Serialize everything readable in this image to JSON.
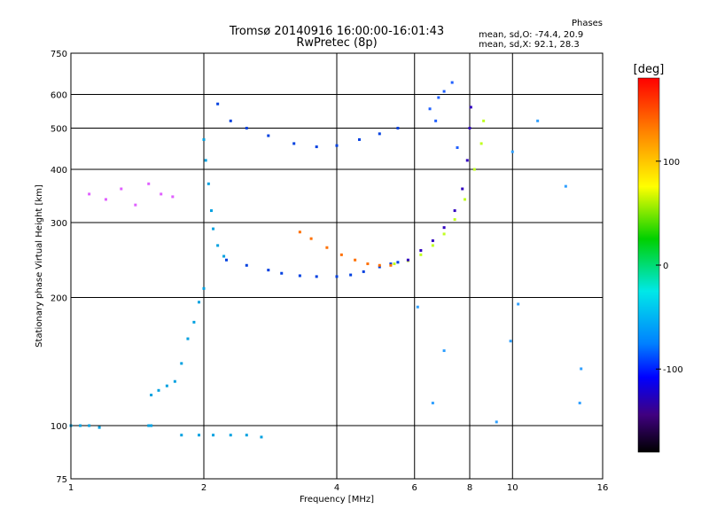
{
  "header": {
    "title_line1": "Tromsø 20140916 16:00:00-16:01:43",
    "title_line2": "RwPretec (8p)",
    "phases_heading": "Phases",
    "phases_line1": "mean, sd,O:  -74.4, 20.9",
    "phases_line2": "mean, sd,X:   92.1, 28.3"
  },
  "chart_data": {
    "type": "scatter",
    "title": "Tromsø 20140916 16:00:00-16:01:43",
    "subtitle": "RwPretec (8p)",
    "xlabel": "Frequency [MHz]",
    "ylabel": "Stationary phase Virtual Height [km]",
    "xscale": "log2",
    "yscale": "log",
    "xlim": [
      1,
      16
    ],
    "ylim": [
      75,
      750
    ],
    "x_ticks": [
      1,
      2,
      4,
      6,
      8,
      10,
      16
    ],
    "x_tick_labels": [
      "1",
      "2",
      "4",
      "6",
      "8",
      "10",
      "16"
    ],
    "y_ticks": [
      75,
      100,
      200,
      300,
      400,
      500,
      600,
      750
    ],
    "y_tick_labels": [
      "75",
      "100",
      "200",
      "300",
      "400",
      "500",
      "600",
      "750"
    ],
    "grid": true,
    "colorbar": {
      "label": "[deg]",
      "range": [
        -180,
        180
      ],
      "ticks": [
        100,
        0,
        -100
      ],
      "tick_labels": [
        "100",
        "0",
        "-100"
      ],
      "stops": [
        "#ff0000",
        "#ff8000",
        "#ffff00",
        "#00d000",
        "#00e8e8",
        "#0080ff",
        "#0000ff",
        "#400080",
        "#000000"
      ]
    },
    "series": [
      {
        "color": "#00a0e0",
        "points": [
          [
            1.0,
            100
          ],
          [
            1.05,
            100
          ],
          [
            1.1,
            100
          ],
          [
            1.16,
            99
          ],
          [
            1.5,
            100
          ],
          [
            1.52,
            100
          ]
        ]
      },
      {
        "color": "#00a0e0",
        "points": [
          [
            1.52,
            118
          ],
          [
            1.58,
            121
          ],
          [
            1.65,
            124
          ],
          [
            1.72,
            127
          ],
          [
            1.78,
            140
          ],
          [
            1.84,
            160
          ],
          [
            1.9,
            175
          ],
          [
            1.95,
            195
          ],
          [
            2.0,
            210
          ]
        ]
      },
      {
        "color": "#00a0e0",
        "points": [
          [
            1.78,
            95
          ],
          [
            1.95,
            95
          ],
          [
            2.1,
            95
          ],
          [
            2.3,
            95
          ],
          [
            2.5,
            95
          ],
          [
            2.7,
            94
          ]
        ]
      },
      {
        "color": "#00a0e0",
        "points": [
          [
            2.0,
            470
          ],
          [
            2.02,
            420
          ],
          [
            2.05,
            370
          ],
          [
            2.08,
            320
          ],
          [
            2.1,
            290
          ],
          [
            2.15,
            265
          ],
          [
            2.22,
            250
          ]
        ]
      },
      {
        "color": "#0040e0",
        "points": [
          [
            2.25,
            245
          ],
          [
            2.5,
            238
          ],
          [
            2.8,
            232
          ],
          [
            3.0,
            228
          ],
          [
            3.3,
            225
          ],
          [
            3.6,
            224
          ],
          [
            4.0,
            224
          ],
          [
            4.3,
            226
          ],
          [
            4.6,
            230
          ],
          [
            5.0,
            236
          ],
          [
            5.3,
            240
          ],
          [
            5.5,
            242
          ]
        ]
      },
      {
        "color": "#0040e0",
        "points": [
          [
            2.15,
            570
          ],
          [
            2.3,
            520
          ],
          [
            2.5,
            500
          ],
          [
            2.8,
            480
          ],
          [
            3.2,
            460
          ],
          [
            3.6,
            452
          ],
          [
            4.0,
            455
          ],
          [
            4.5,
            470
          ],
          [
            5.0,
            485
          ],
          [
            5.5,
            500
          ]
        ]
      },
      {
        "color": "#ff7000",
        "points": [
          [
            3.3,
            285
          ],
          [
            3.5,
            275
          ],
          [
            3.8,
            262
          ],
          [
            4.1,
            252
          ],
          [
            4.4,
            245
          ],
          [
            4.7,
            240
          ],
          [
            5.0,
            238
          ],
          [
            5.3,
            238
          ]
        ]
      },
      {
        "color": "#c0ff20",
        "points": [
          [
            5.4,
            240
          ],
          [
            5.8,
            244
          ],
          [
            6.2,
            252
          ],
          [
            6.6,
            265
          ],
          [
            7.0,
            282
          ],
          [
            7.4,
            305
          ],
          [
            7.8,
            340
          ],
          [
            8.2,
            400
          ],
          [
            8.5,
            460
          ],
          [
            8.6,
            520
          ]
        ]
      },
      {
        "color": "#3000c0",
        "points": [
          [
            5.8,
            245
          ],
          [
            6.2,
            258
          ],
          [
            6.6,
            272
          ],
          [
            7.0,
            292
          ],
          [
            7.4,
            320
          ],
          [
            7.7,
            360
          ],
          [
            7.9,
            420
          ],
          [
            8.0,
            500
          ],
          [
            8.05,
            560
          ]
        ]
      },
      {
        "color": "#2060ff",
        "points": [
          [
            6.5,
            555
          ],
          [
            6.8,
            590
          ],
          [
            7.0,
            610
          ],
          [
            7.3,
            640
          ],
          [
            6.7,
            520
          ],
          [
            7.5,
            450
          ]
        ]
      },
      {
        "color": "#e060ff",
        "points": [
          [
            1.1,
            350
          ],
          [
            1.2,
            340
          ],
          [
            1.3,
            360
          ],
          [
            1.4,
            330
          ],
          [
            1.5,
            370
          ],
          [
            1.6,
            350
          ],
          [
            1.7,
            345
          ]
        ]
      },
      {
        "color": "#30a0ff",
        "points": [
          [
            6.1,
            190
          ],
          [
            6.6,
            113
          ],
          [
            7.0,
            150
          ],
          [
            9.2,
            102
          ],
          [
            9.9,
            158
          ],
          [
            10.3,
            193
          ],
          [
            10.0,
            440
          ],
          [
            11.4,
            520
          ],
          [
            13.2,
            365
          ],
          [
            14.3,
            136
          ],
          [
            14.2,
            113
          ]
        ]
      }
    ]
  }
}
